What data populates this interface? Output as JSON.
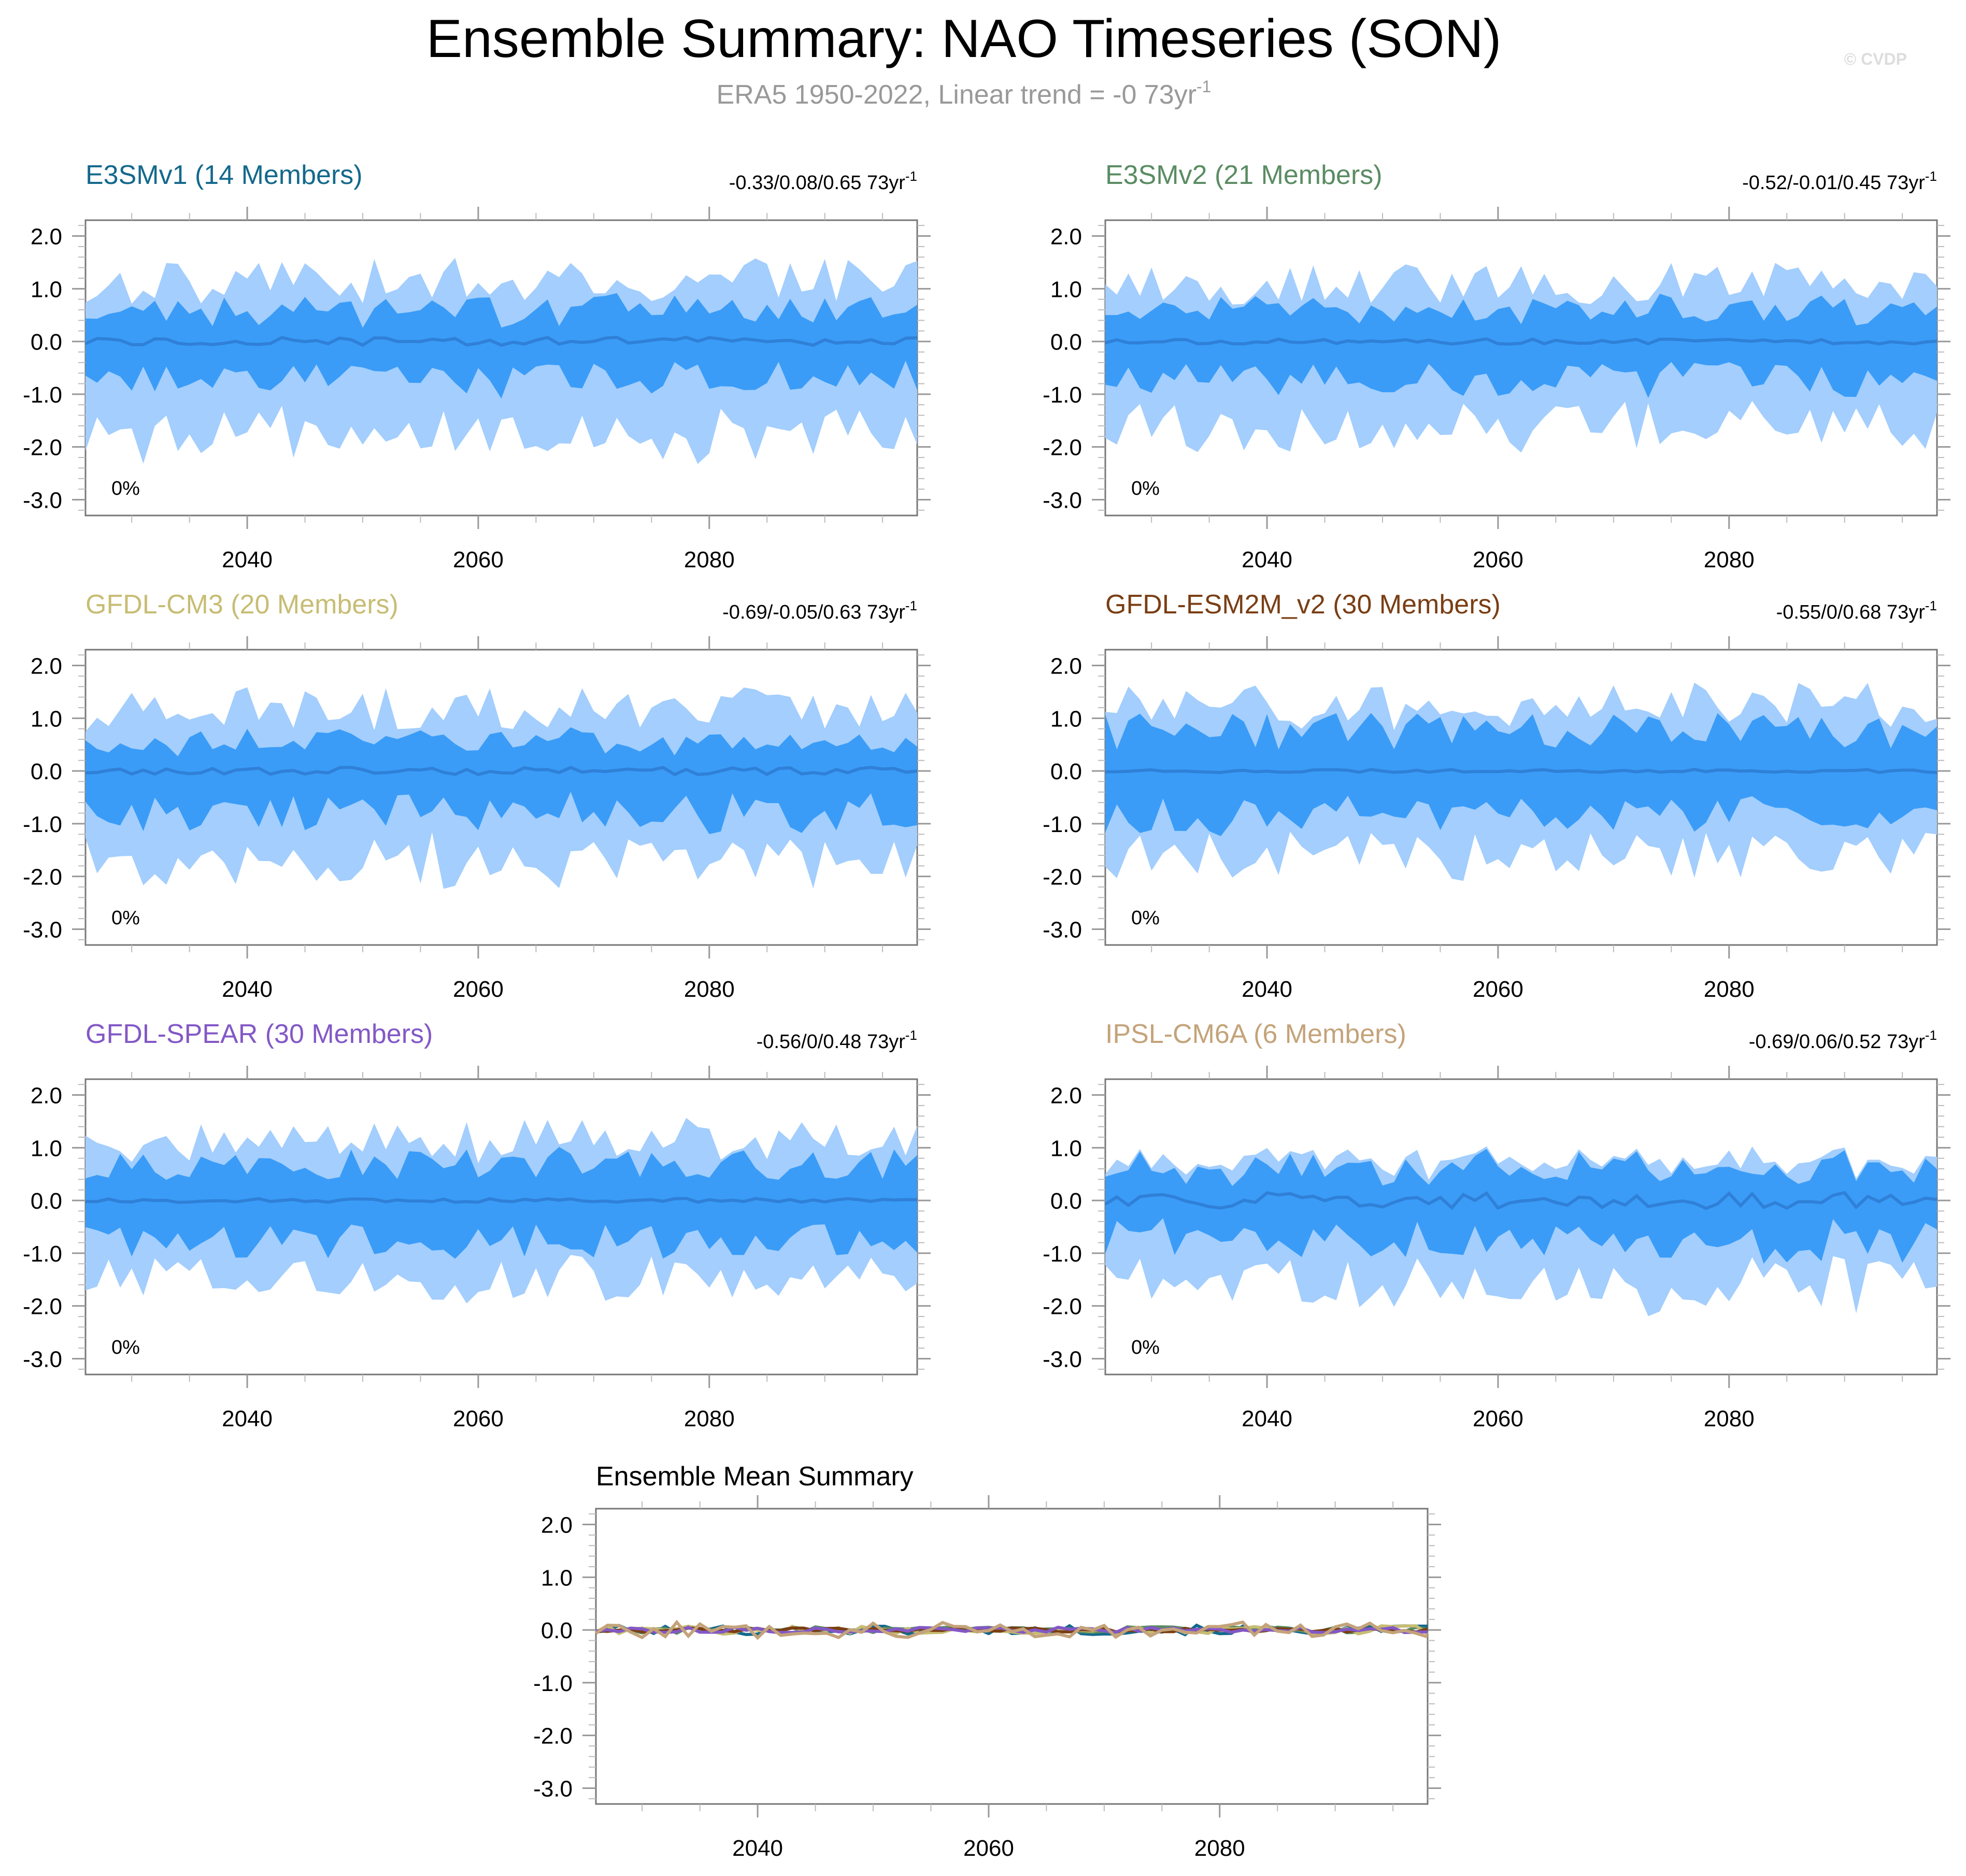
{
  "figure": {
    "title": "Ensemble Summary: NAO Timeseries (SON)",
    "subtitle_main": "ERA5 1950-2022, Linear trend = -0 73yr",
    "subtitle_sup": "-1",
    "credit": "© CVDP"
  },
  "chart_data": {
    "type": "area",
    "x_range": [
      2026,
      2098
    ],
    "ylim": [
      -3.3,
      2.3
    ],
    "y_ticks": [
      "2.0",
      "1.0",
      "0.0",
      "-1.0",
      "-2.0",
      "-3.0"
    ],
    "x_ticks": [
      "2040",
      "2060",
      "2080"
    ],
    "bands": {
      "outer_color": "#a3cefd",
      "inner_color": "#3a9cf7",
      "mean_color": "#2f80d8"
    },
    "panels": [
      {
        "title": "E3SMv1 (14 Members)",
        "title_color": "#14698c",
        "trend": "-0.33/0.08/0.65 73yr",
        "trend_sup": "-1",
        "pct_label": "0%",
        "envelope": {
          "outer_hi": 1.2,
          "inner_hi": 0.6,
          "inner_lo": -0.7,
          "outer_lo": -1.8,
          "mean_amp": 0.08,
          "seed": 11
        }
      },
      {
        "title": "E3SMv2 (21 Members)",
        "title_color": "#5a8c63",
        "trend": "-0.52/-0.01/0.45 73yr",
        "trend_sup": "-1",
        "pct_label": "0%",
        "envelope": {
          "outer_hi": 1.15,
          "inner_hi": 0.6,
          "inner_lo": -0.75,
          "outer_lo": -1.6,
          "mean_amp": 0.05,
          "seed": 23
        }
      },
      {
        "title": "GFDL-CM3 (20 Members)",
        "title_color": "#c7bd74",
        "trend": "-0.69/-0.05/0.63 73yr",
        "trend_sup": "-1",
        "pct_label": "0%",
        "envelope": {
          "outer_hi": 1.25,
          "inner_hi": 0.55,
          "inner_lo": -0.8,
          "outer_lo": -1.7,
          "mean_amp": 0.07,
          "seed": 37
        }
      },
      {
        "title": "GFDL-ESM2M_v2 (30 Members)",
        "title_color": "#7a3e14",
        "trend": "-0.55/0/0.68 73yr",
        "trend_sup": "-1",
        "pct_label": "0%",
        "envelope": {
          "outer_hi": 1.3,
          "inner_hi": 0.75,
          "inner_lo": -0.85,
          "outer_lo": -1.6,
          "mean_amp": 0.03,
          "seed": 41
        }
      },
      {
        "title": "GFDL-SPEAR (30 Members)",
        "title_color": "#8358c6",
        "trend": "-0.56/0/0.48 73yr",
        "trend_sup": "-1",
        "pct_label": "0%",
        "envelope": {
          "outer_hi": 1.2,
          "inner_hi": 0.7,
          "inner_lo": -0.75,
          "outer_lo": -1.5,
          "mean_amp": 0.04,
          "seed": 53
        }
      },
      {
        "title": "IPSL-CM6A (6 Members)",
        "title_color": "#c4a37a",
        "trend": "-0.69/0.06/0.52 73yr",
        "trend_sup": "-1",
        "pct_label": "0%",
        "envelope": {
          "outer_hi": 0.7,
          "inner_hi": 0.6,
          "inner_lo": -0.8,
          "outer_lo": -1.6,
          "mean_amp": 0.15,
          "seed": 67
        }
      }
    ],
    "mean_summary": {
      "title": "Ensemble Mean Summary",
      "series": [
        {
          "name": "E3SMv1",
          "color": "#14698c",
          "amp": 0.09,
          "seed": 101
        },
        {
          "name": "E3SMv2",
          "color": "#5a8c63",
          "amp": 0.06,
          "seed": 103
        },
        {
          "name": "GFDL-CM3",
          "color": "#c7bd74",
          "amp": 0.08,
          "seed": 107
        },
        {
          "name": "GFDL-ESM2M_v2",
          "color": "#7a3e14",
          "amp": 0.04,
          "seed": 109
        },
        {
          "name": "GFDL-SPEAR",
          "color": "#8358c6",
          "amp": 0.05,
          "seed": 113
        },
        {
          "name": "IPSL-CM6A",
          "color": "#c4a37a",
          "amp": 0.15,
          "seed": 127
        }
      ]
    }
  }
}
